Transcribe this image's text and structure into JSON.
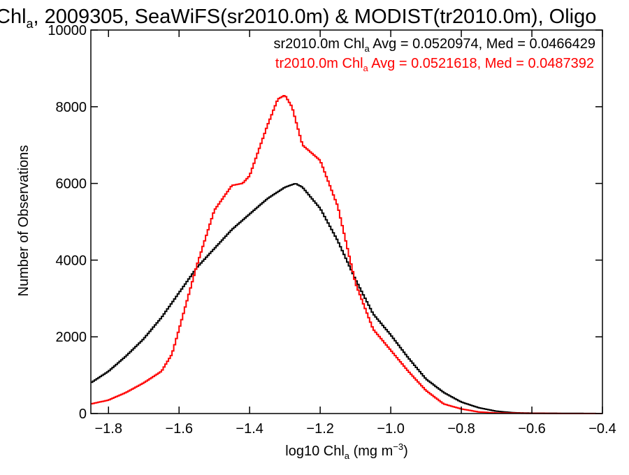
{
  "chart_data": {
    "type": "line",
    "title": {
      "prefix": "Chl",
      "prefix_sub": "a",
      "rest": ", 2009305, SeaWiFS(sr2010.0m) & MODIST(tr2010.0m), Oligo"
    },
    "xlabel": {
      "pre": "log10 Chl",
      "sub": "a",
      "mid": " (mg m",
      "sup": "−3",
      "post": ")"
    },
    "ylabel": "Number of Observations",
    "xlim": [
      -1.85,
      -0.4
    ],
    "ylim": [
      0,
      10000
    ],
    "x_ticks": [
      "−1.8",
      "−1.6",
      "−1.4",
      "−1.2",
      "−1.0",
      "−0.8",
      "−0.6",
      "−0.4"
    ],
    "x_tick_values": [
      -1.8,
      -1.6,
      -1.4,
      -1.2,
      -1.0,
      -0.8,
      -0.6,
      -0.4
    ],
    "y_ticks": [
      "0",
      "2000",
      "4000",
      "6000",
      "8000",
      "10000"
    ],
    "y_tick_values": [
      0,
      2000,
      4000,
      6000,
      8000,
      10000
    ],
    "legend": [
      {
        "pre": "sr2010.0m Chl",
        "sub": "a",
        "post": " Avg = 0.0520974, Med = 0.0466429",
        "color": "#000000"
      },
      {
        "pre": "tr2010.0m Chl",
        "sub": "a",
        "post": " Avg = 0.0521618, Med = 0.0487392",
        "color": "#ff0000"
      }
    ],
    "series": [
      {
        "color": "#000000",
        "x": [
          -1.85,
          -1.8,
          -1.75,
          -1.7,
          -1.65,
          -1.6,
          -1.55,
          -1.5,
          -1.45,
          -1.4,
          -1.35,
          -1.3,
          -1.27,
          -1.25,
          -1.2,
          -1.15,
          -1.1,
          -1.05,
          -1.0,
          -0.95,
          -0.9,
          -0.85,
          -0.8,
          -0.75,
          -0.7,
          -0.65,
          -0.6,
          -0.5,
          -0.4
        ],
        "y": [
          800,
          1100,
          1500,
          1950,
          2500,
          3150,
          3800,
          4300,
          4800,
          5200,
          5600,
          5900,
          6000,
          5900,
          5350,
          4500,
          3500,
          2600,
          2050,
          1450,
          900,
          550,
          300,
          150,
          60,
          20,
          10,
          5,
          0
        ]
      },
      {
        "color": "#ff0000",
        "x": [
          -1.85,
          -1.8,
          -1.75,
          -1.7,
          -1.65,
          -1.62,
          -1.6,
          -1.55,
          -1.5,
          -1.45,
          -1.42,
          -1.4,
          -1.35,
          -1.32,
          -1.3,
          -1.28,
          -1.25,
          -1.2,
          -1.15,
          -1.1,
          -1.05,
          -1.0,
          -0.95,
          -0.9,
          -0.85,
          -0.8,
          -0.75,
          -0.7,
          -0.6,
          -0.5,
          -0.4
        ],
        "y": [
          250,
          350,
          550,
          800,
          1100,
          1550,
          2200,
          3850,
          5300,
          5950,
          6000,
          6200,
          7500,
          8200,
          8300,
          8000,
          7000,
          6600,
          5400,
          3400,
          2200,
          1650,
          1100,
          600,
          250,
          120,
          40,
          15,
          5,
          0,
          0
        ]
      }
    ]
  }
}
